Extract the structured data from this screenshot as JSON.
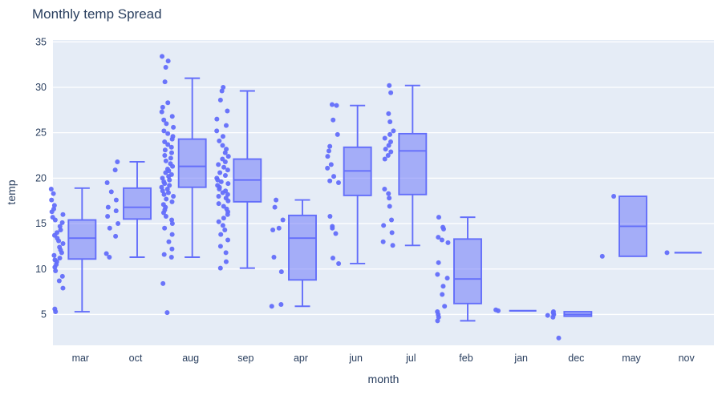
{
  "colors": {
    "accent": "#636efa",
    "box_fill": "rgba(99,110,250,0.5)",
    "plot_bg": "#e5ecf6",
    "grid": "#ffffff",
    "text": "#2a3f5f"
  },
  "chart_data": {
    "type": "box",
    "title": "Monthly temp Spread",
    "xlabel": "month",
    "ylabel": "temp",
    "legend": "none",
    "grid": "horizontal",
    "ylim": [
      1.6,
      35.2
    ],
    "y_ticks": [
      5,
      10,
      15,
      20,
      25,
      30,
      35
    ],
    "categories": [
      "mar",
      "oct",
      "aug",
      "sep",
      "apr",
      "jun",
      "jul",
      "feb",
      "jan",
      "dec",
      "may",
      "nov"
    ],
    "series": [
      {
        "month": "mar",
        "box": {
          "low": 5.3,
          "q1": 11.1,
          "median": 13.4,
          "q3": 15.4,
          "high": 18.9
        },
        "points": [
          18.8,
          18.3,
          17.6,
          17.0,
          16.6,
          16.3,
          16.0,
          15.7,
          15.4,
          15.1,
          14.7,
          14.3,
          14.0,
          13.7,
          13.4,
          13.1,
          12.8,
          12.4,
          12.1,
          11.8,
          11.5,
          11.2,
          11.0,
          10.8,
          10.5,
          10.2,
          9.8,
          9.2,
          8.7,
          7.9,
          5.6,
          5.3
        ]
      },
      {
        "month": "oct",
        "box": {
          "low": 11.3,
          "q1": 15.5,
          "median": 16.8,
          "q3": 18.9,
          "high": 21.8
        },
        "points": [
          21.8,
          20.9,
          19.5,
          18.5,
          17.6,
          16.8,
          16.4,
          15.8,
          15.0,
          14.5,
          13.6,
          11.7,
          11.3
        ]
      },
      {
        "month": "aug",
        "box": {
          "low": 11.3,
          "q1": 19.0,
          "median": 21.3,
          "q3": 24.3,
          "high": 31.0
        },
        "points": [
          33.4,
          32.9,
          32.2,
          30.6,
          28.3,
          27.8,
          27.3,
          26.8,
          26.4,
          26.0,
          25.6,
          25.2,
          24.9,
          24.6,
          24.3,
          24.0,
          23.7,
          23.4,
          23.1,
          22.8,
          22.5,
          22.2,
          21.9,
          21.6,
          21.3,
          21.0,
          20.8,
          20.6,
          20.4,
          20.2,
          20.0,
          19.8,
          19.6,
          19.4,
          19.2,
          19.0,
          18.8,
          18.6,
          18.4,
          18.2,
          18.0,
          17.7,
          17.4,
          17.1,
          16.8,
          16.5,
          16.2,
          15.8,
          15.4,
          15.0,
          14.5,
          13.8,
          13.0,
          12.2,
          11.6,
          11.3,
          8.4,
          5.2
        ]
      },
      {
        "month": "sep",
        "box": {
          "low": 10.1,
          "q1": 17.4,
          "median": 19.8,
          "q3": 22.1,
          "high": 29.6
        },
        "points": [
          30.0,
          29.6,
          28.6,
          27.4,
          26.5,
          25.8,
          25.2,
          24.6,
          24.1,
          23.6,
          23.2,
          22.8,
          22.4,
          22.1,
          21.8,
          21.5,
          21.2,
          20.9,
          20.6,
          20.3,
          20.0,
          19.8,
          19.6,
          19.4,
          19.2,
          19.0,
          18.8,
          18.6,
          18.4,
          18.2,
          18.0,
          17.8,
          17.5,
          17.2,
          16.9,
          16.6,
          16.3,
          16.0,
          15.6,
          15.2,
          14.8,
          14.3,
          13.8,
          13.2,
          12.5,
          11.8,
          10.8,
          10.1
        ]
      },
      {
        "month": "apr",
        "box": {
          "low": 5.9,
          "q1": 8.8,
          "median": 13.4,
          "q3": 15.9,
          "high": 17.6
        },
        "points": [
          17.6,
          16.8,
          15.4,
          14.5,
          14.3,
          11.3,
          9.7,
          6.1,
          5.9
        ]
      },
      {
        "month": "jun",
        "box": {
          "low": 10.6,
          "q1": 18.1,
          "median": 20.8,
          "q3": 23.4,
          "high": 28.0
        },
        "points": [
          28.1,
          28.0,
          26.4,
          24.8,
          23.5,
          23.0,
          22.4,
          21.5,
          21.1,
          20.2,
          19.7,
          19.5,
          15.8,
          14.7,
          14.5,
          13.9,
          11.2,
          10.6
        ]
      },
      {
        "month": "jul",
        "box": {
          "low": 12.6,
          "q1": 18.2,
          "median": 23.0,
          "q3": 24.9,
          "high": 30.2
        },
        "points": [
          30.2,
          29.4,
          27.1,
          26.2,
          25.2,
          24.8,
          24.4,
          24.0,
          23.6,
          23.2,
          22.9,
          22.5,
          22.1,
          18.8,
          18.3,
          17.8,
          16.9,
          15.4,
          14.8,
          14.0,
          13.0,
          12.6
        ]
      },
      {
        "month": "feb",
        "box": {
          "low": 4.3,
          "q1": 6.2,
          "median": 8.9,
          "q3": 13.3,
          "high": 15.7
        },
        "points": [
          15.7,
          14.6,
          14.4,
          13.5,
          13.2,
          12.9,
          10.7,
          9.4,
          9.0,
          8.1,
          7.2,
          5.9,
          5.3,
          5.0,
          4.7,
          4.3
        ]
      },
      {
        "month": "jan",
        "box": {
          "low": 5.4,
          "q1": 5.4,
          "median": 5.4,
          "q3": 5.4,
          "high": 5.4
        },
        "points": [
          5.5,
          5.4
        ]
      },
      {
        "month": "dec",
        "box": {
          "low": 4.8,
          "q1": 4.8,
          "median": 5.0,
          "q3": 5.3,
          "high": 5.3
        },
        "points": [
          5.3,
          5.2,
          5.0,
          4.9,
          4.7,
          2.4
        ]
      },
      {
        "month": "may",
        "box": {
          "low": 11.4,
          "q1": 11.4,
          "median": 14.7,
          "q3": 18.0,
          "high": 18.0
        },
        "points": [
          18.0,
          11.4
        ]
      },
      {
        "month": "nov",
        "box": {
          "low": 11.8,
          "q1": 11.8,
          "median": 11.8,
          "q3": 11.8,
          "high": 11.8
        },
        "points": [
          11.8
        ]
      }
    ]
  }
}
